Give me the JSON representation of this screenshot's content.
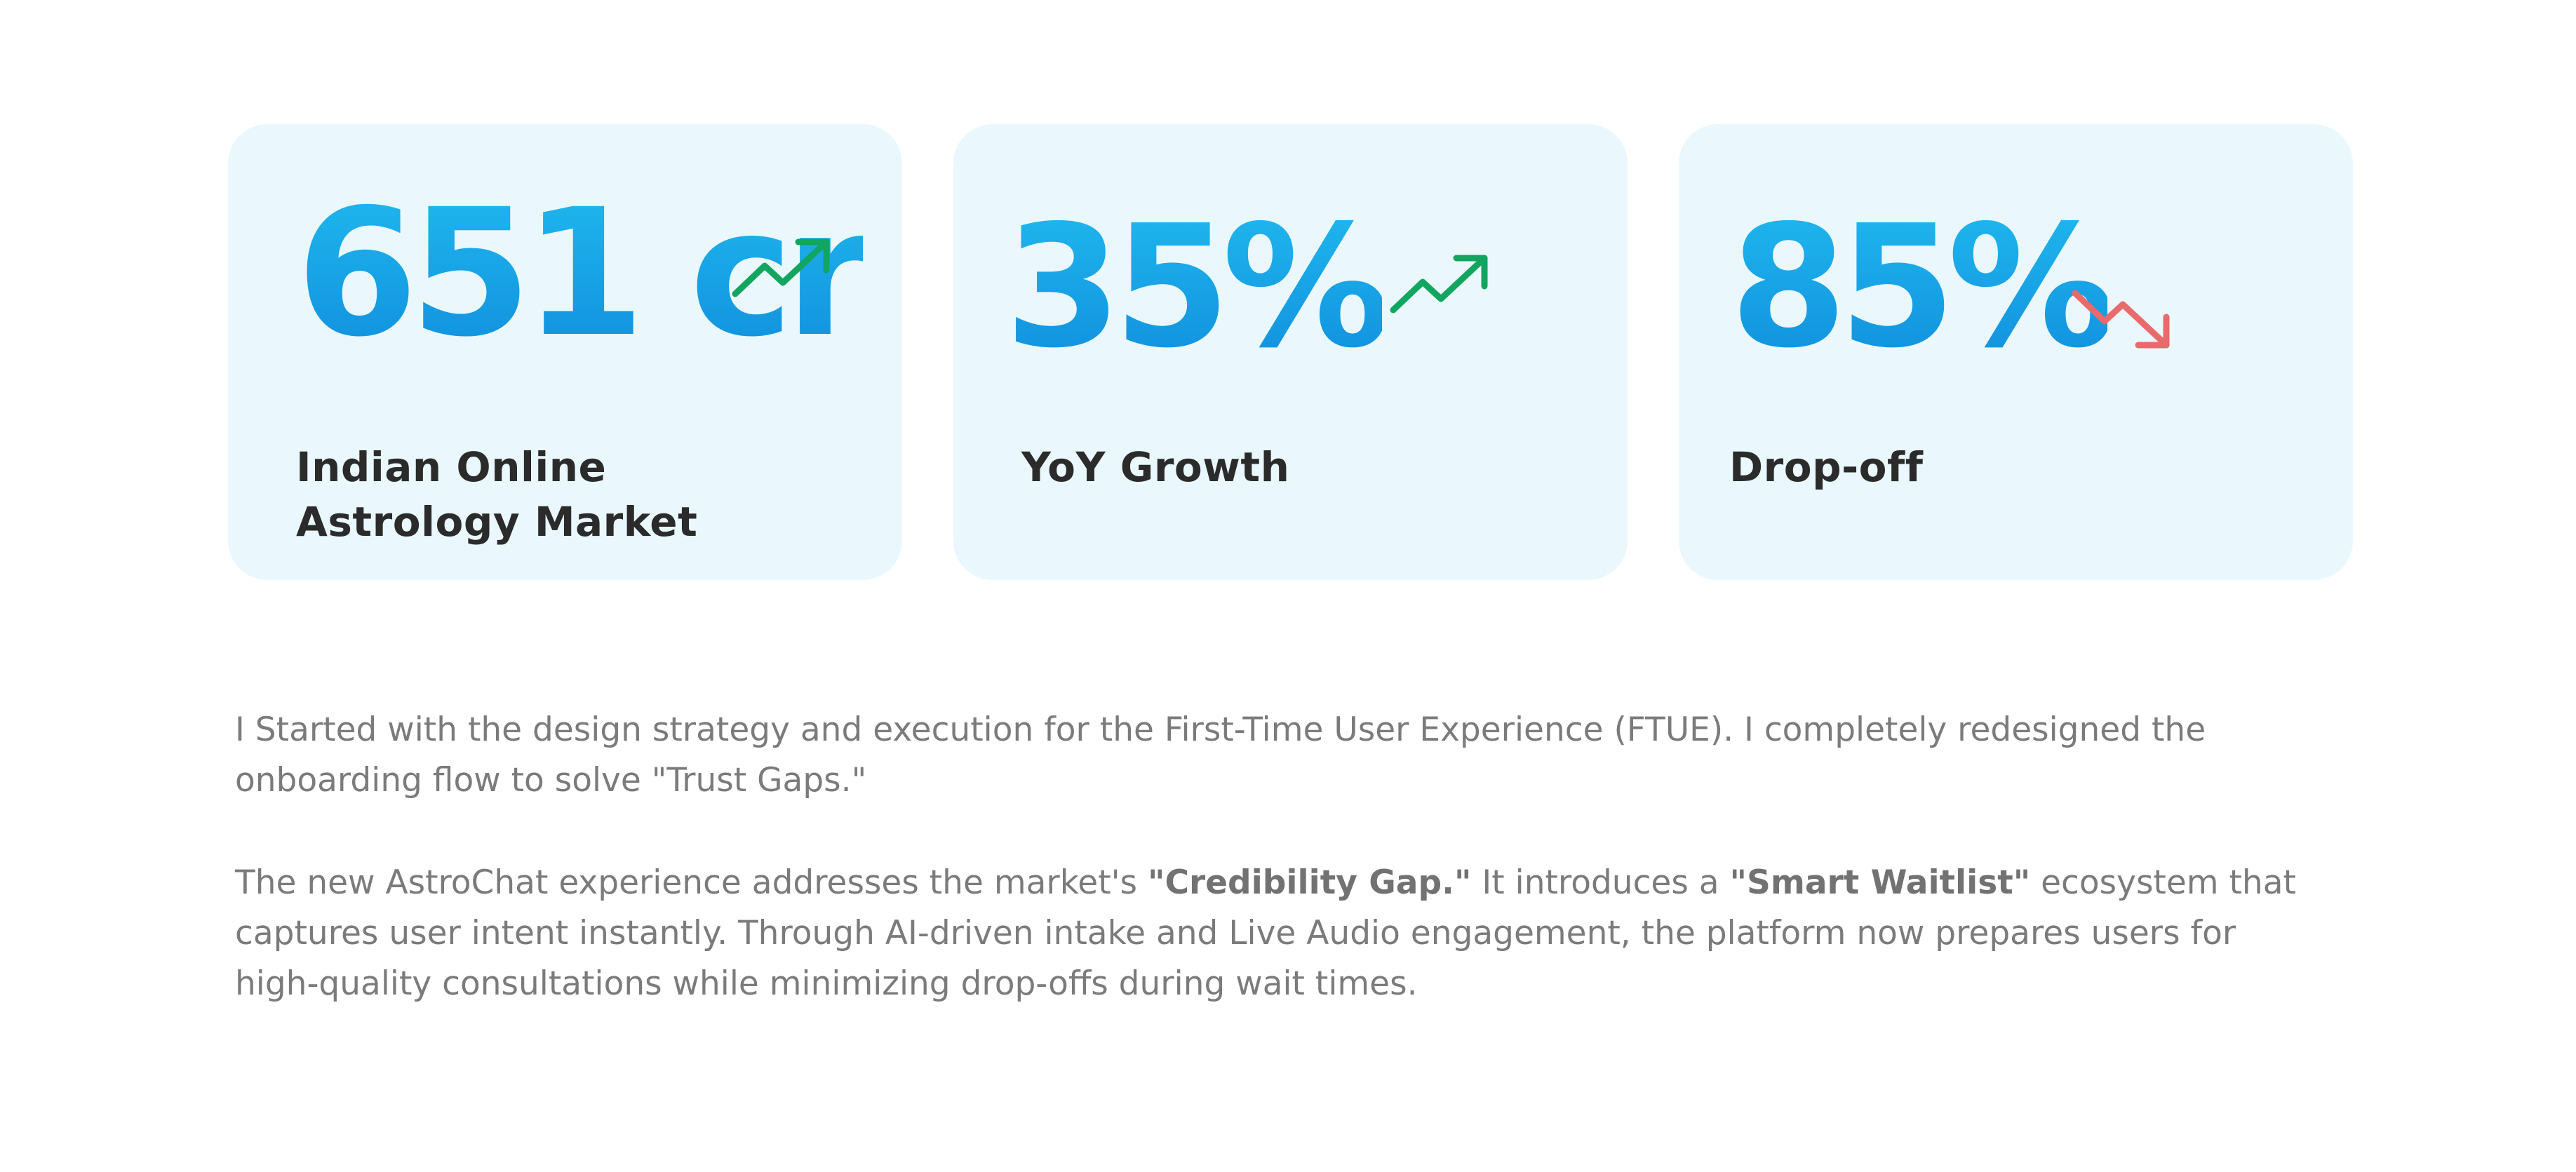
{
  "stats": [
    {
      "value": "651 cr",
      "label": "Indian Online Astrology Market",
      "trend": "up",
      "trend_icon": "trend-up-icon",
      "trend_color": "#12a55f"
    },
    {
      "value": "35%",
      "label": "YoY Growth",
      "trend": "up",
      "trend_icon": "trend-up-icon",
      "trend_color": "#12a55f"
    },
    {
      "value": "85%",
      "label": "Drop-off",
      "trend": "down",
      "trend_icon": "trend-down-icon",
      "trend_color": "#e86a6a"
    }
  ],
  "description": {
    "paragraph_1": "I Started with the design strategy and execution for the First-Time User Experience (FTUE). I completely redesigned the onboarding flow to solve \"Trust Gaps.\"",
    "paragraph_2": {
      "part_1": "The new AstroChat experience addresses the market's ",
      "bold_1": "\"Credibility Gap.\"",
      "part_2": " It introduces a ",
      "bold_2": "\"Smart Waitlist\"",
      "part_3": " ecosystem that captures user intent instantly. Through AI-driven intake and Live Audio engagement, the platform now prepares users for high-quality consultations while minimizing drop-offs during wait times."
    }
  },
  "colors": {
    "card_background": "#eaf8fd",
    "value_gradient_top": "#1fb8ee",
    "value_gradient_bottom": "#118fde",
    "label_text": "#2b2b2b",
    "body_text": "#7b7b7b"
  }
}
